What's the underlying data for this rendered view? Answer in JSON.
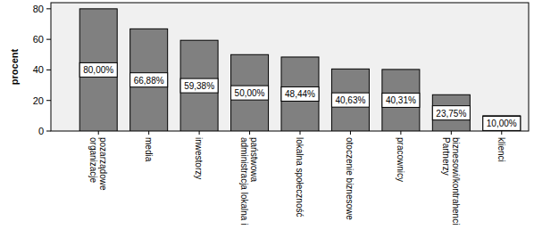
{
  "chart_data": {
    "type": "bar",
    "y_label": "procent",
    "categories": [
      "organizacje pozarządowe",
      "media",
      "inwestorzy",
      "administracja lokalna i państwowa",
      "lokalna społeczność",
      "otoczenie biznesowe",
      "pracownicy",
      "Partnerzy biznesowi/kontrahenci",
      "klienci"
    ],
    "values": [
      80,
      66.88,
      59.38,
      50,
      48.44,
      40.63,
      40.31,
      23.75,
      10
    ],
    "value_labels": [
      "80,00%",
      "66,88%",
      "59,38%",
      "50,00%",
      "48,44%",
      "40,63%",
      "40,31%",
      "23,75%",
      "10,00%"
    ],
    "color": "#808080",
    "ylim": [
      0,
      84
    ],
    "yticks": [
      0,
      20,
      40,
      60,
      80
    ],
    "grid": false,
    "data_labels": true
  }
}
